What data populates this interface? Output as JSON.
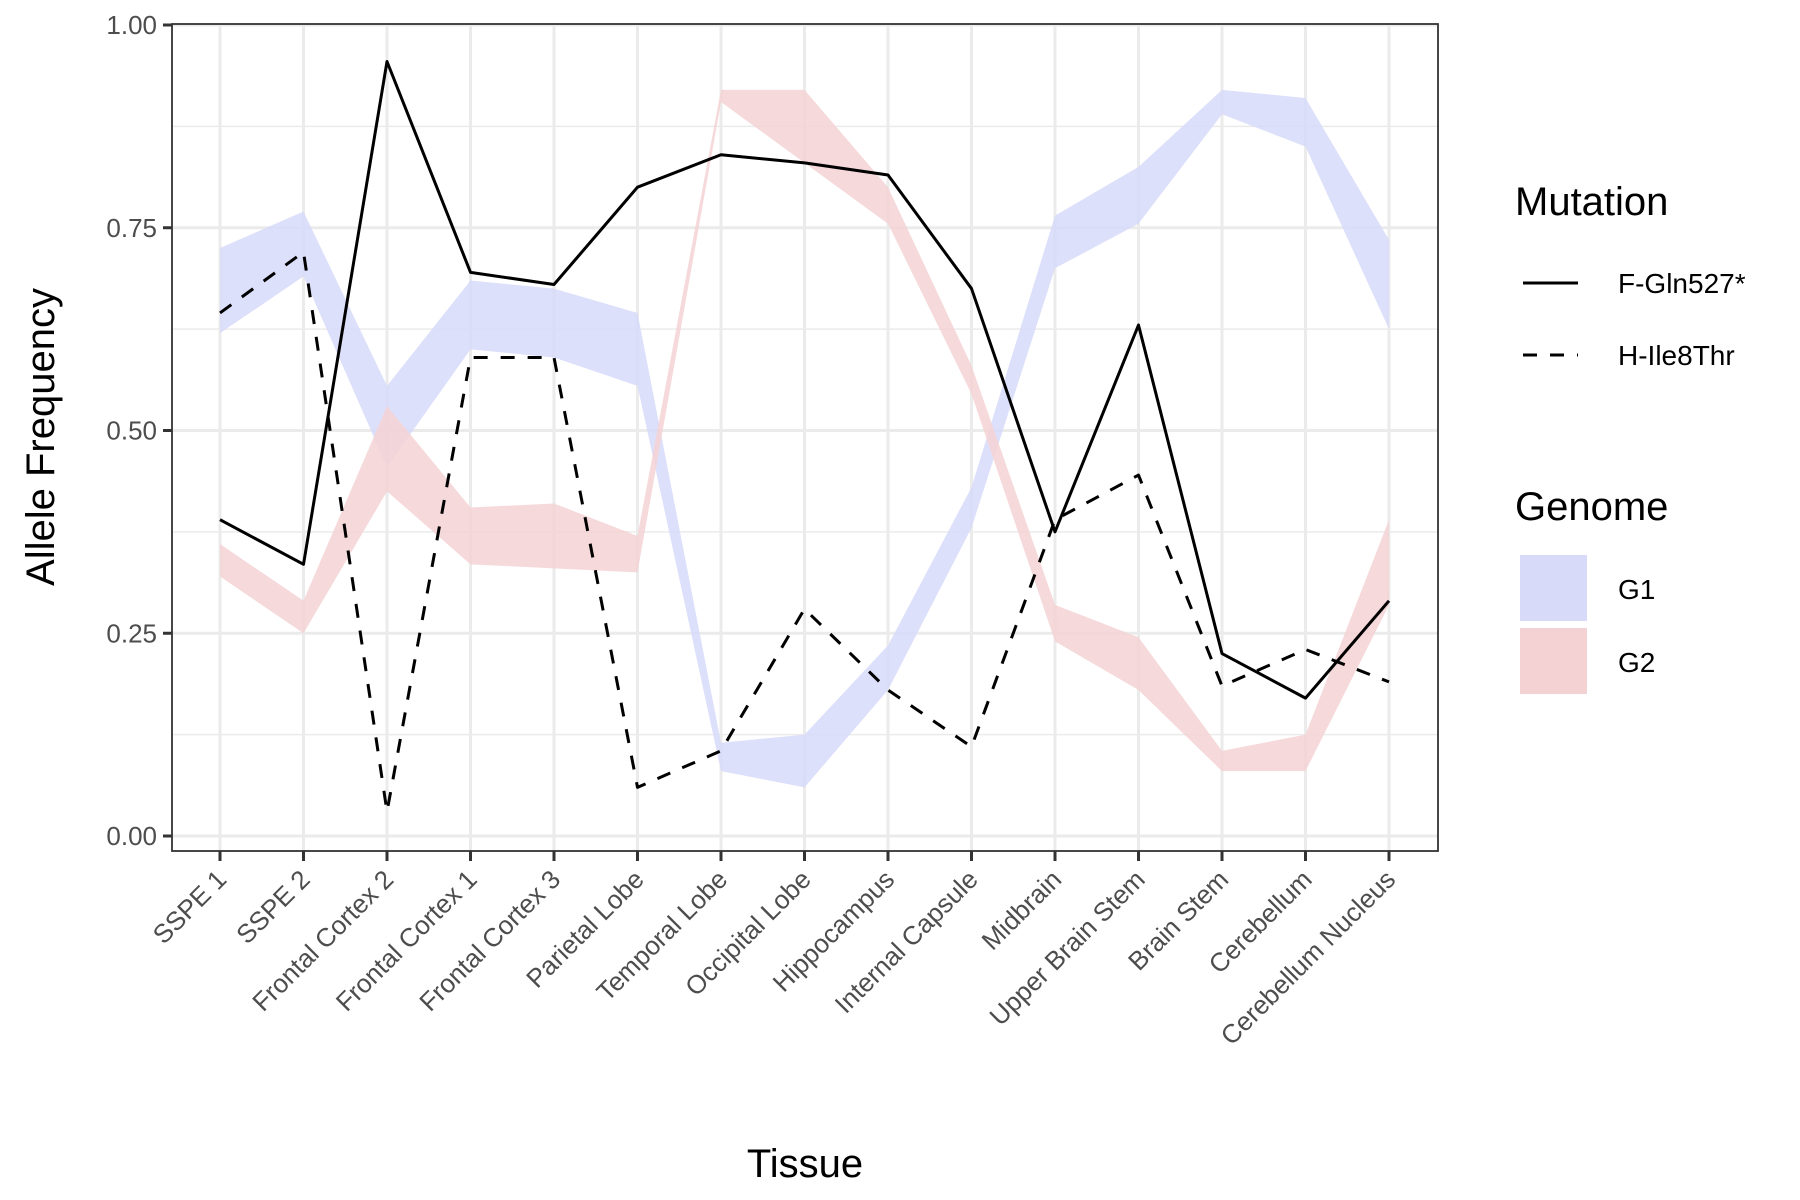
{
  "chart_data": {
    "type": "line",
    "title": "",
    "xlabel": "Tissue",
    "ylabel": "Allele Frequency",
    "ylim": [
      0,
      1
    ],
    "yticks": [
      "0.00",
      "0.25",
      "0.50",
      "0.75",
      "1.00"
    ],
    "ytick_values": [
      0,
      0.25,
      0.5,
      0.75,
      1.0
    ],
    "grid": true,
    "legend_position": "right",
    "categories": [
      "SSPE 1",
      "SSPE 2",
      "Frontal Cortex 2",
      "Frontal Cortex 1",
      "Frontal Cortex 3",
      "Parietal Lobe",
      "Temporal Lobe",
      "Occipital Lobe",
      "Hippocampus",
      "Internal Capsule",
      "Midbrain",
      "Upper Brain Stem",
      "Brain Stem",
      "Cerebellum",
      "Cerebellum Nucleus"
    ],
    "series": [
      {
        "name": "F-Gln527*",
        "linetype": "solid",
        "values": [
          0.39,
          0.335,
          0.955,
          0.695,
          0.68,
          0.8,
          0.84,
          0.83,
          0.815,
          0.675,
          0.375,
          0.63,
          0.225,
          0.17,
          0.29
        ]
      },
      {
        "name": "H-Ile8Thr",
        "linetype": "dashed",
        "values": [
          0.645,
          0.72,
          0.03,
          0.59,
          0.59,
          0.06,
          0.105,
          0.28,
          0.18,
          0.11,
          0.39,
          0.445,
          0.185,
          0.23,
          0.19
        ]
      }
    ],
    "ribbons": [
      {
        "name": "G1",
        "color": "#d7dbf9",
        "lower": [
          0.62,
          0.69,
          0.455,
          0.6,
          0.59,
          0.555,
          0.08,
          0.06,
          0.18,
          0.38,
          0.7,
          0.755,
          0.89,
          0.85,
          0.625
        ],
        "upper": [
          0.725,
          0.77,
          0.555,
          0.685,
          0.675,
          0.645,
          0.115,
          0.125,
          0.235,
          0.43,
          0.765,
          0.825,
          0.92,
          0.91,
          0.735
        ]
      },
      {
        "name": "G2",
        "color": "#f4d2d3",
        "lower": [
          0.32,
          0.25,
          0.425,
          0.335,
          0.33,
          0.325,
          0.905,
          0.83,
          0.755,
          0.545,
          0.24,
          0.18,
          0.08,
          0.08,
          0.285
        ],
        "upper": [
          0.36,
          0.29,
          0.53,
          0.405,
          0.41,
          0.37,
          0.92,
          0.92,
          0.8,
          0.58,
          0.285,
          0.245,
          0.105,
          0.125,
          0.39
        ]
      }
    ],
    "legends": [
      {
        "title": "Mutation",
        "entries": [
          {
            "label": "F-Gln527*",
            "linetype": "solid"
          },
          {
            "label": "H-Ile8Thr",
            "linetype": "dashed"
          }
        ]
      },
      {
        "title": "Genome",
        "entries": [
          {
            "label": "G1",
            "color": "#d7dbf9"
          },
          {
            "label": "G2",
            "color": "#f4d2d3"
          }
        ]
      }
    ]
  }
}
